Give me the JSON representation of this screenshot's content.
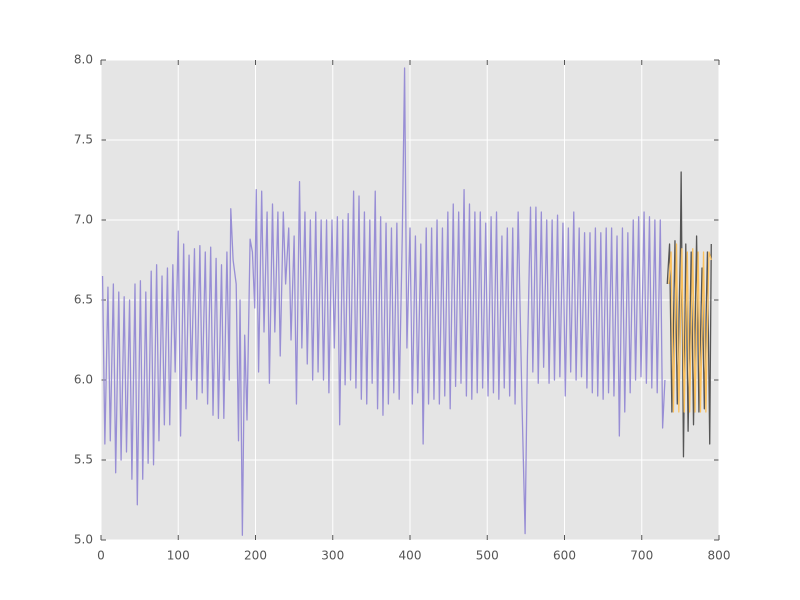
{
  "chart_data": {
    "type": "line",
    "grid": true,
    "background": "#e5e5e5",
    "xlim": [
      0,
      800
    ],
    "xticks": [
      0,
      100,
      200,
      300,
      400,
      500,
      600,
      700,
      800
    ],
    "ylim": [
      5,
      8
    ],
    "yticks": [
      {
        "value": 5,
        "label": "5.0"
      },
      {
        "value": 5.5,
        "label": "5.5"
      },
      {
        "value": 6,
        "label": "6.0"
      },
      {
        "value": 6.5,
        "label": "6.5"
      },
      {
        "value": 7,
        "label": "7.0"
      },
      {
        "value": 7.5,
        "label": "7.5"
      },
      {
        "value": 8,
        "label": "8.0"
      }
    ],
    "series": [
      {
        "color": "#988ed5",
        "x": [
          2,
          5,
          9,
          12,
          16,
          19,
          23,
          26,
          30,
          33,
          37,
          40,
          44,
          47,
          51,
          54,
          58,
          61,
          65,
          68,
          72,
          75,
          79,
          82,
          86,
          89,
          93,
          96,
          100,
          103,
          107,
          110,
          114,
          117,
          121,
          124,
          128,
          131,
          135,
          138,
          142,
          145,
          149,
          152,
          156,
          159,
          163,
          166,
          168,
          171,
          175,
          178,
          180,
          183,
          186,
          189,
          193,
          196,
          199,
          201,
          204,
          208,
          211,
          215,
          218,
          222,
          225,
          229,
          232,
          236,
          239,
          243,
          246,
          250,
          253,
          257,
          260,
          264,
          267,
          271,
          274,
          278,
          281,
          285,
          288,
          292,
          295,
          299,
          302,
          306,
          309,
          313,
          316,
          320,
          323,
          327,
          330,
          334,
          337,
          341,
          344,
          348,
          351,
          355,
          358,
          362,
          365,
          369,
          372,
          376,
          379,
          383,
          386,
          390,
          393,
          396,
          400,
          403,
          407,
          410,
          414,
          417,
          421,
          424,
          428,
          431,
          435,
          438,
          442,
          445,
          449,
          452,
          456,
          459,
          463,
          466,
          470,
          473,
          477,
          480,
          484,
          487,
          491,
          494,
          498,
          501,
          505,
          508,
          512,
          515,
          519,
          522,
          526,
          529,
          533,
          536,
          540,
          545,
          549,
          552,
          556,
          559,
          563,
          566,
          570,
          573,
          577,
          580,
          584,
          587,
          591,
          594,
          598,
          601,
          605,
          608,
          612,
          615,
          619,
          622,
          626,
          629,
          633,
          636,
          640,
          643,
          647,
          650,
          654,
          657,
          661,
          664,
          668,
          671,
          675,
          678,
          682,
          685,
          689,
          692,
          696,
          699,
          703,
          706,
          710,
          713,
          717,
          720,
          724,
          727,
          730
        ],
        "values": [
          6.65,
          5.6,
          6.58,
          5.62,
          6.6,
          5.42,
          6.55,
          5.5,
          6.52,
          5.55,
          6.5,
          5.38,
          6.6,
          5.22,
          6.62,
          5.38,
          6.55,
          5.48,
          6.68,
          5.47,
          6.72,
          5.62,
          6.65,
          5.72,
          6.7,
          5.72,
          6.72,
          6.05,
          6.93,
          5.65,
          6.85,
          5.82,
          6.78,
          6.0,
          6.82,
          5.88,
          6.84,
          5.92,
          6.8,
          5.85,
          6.83,
          5.78,
          6.76,
          5.76,
          6.72,
          5.76,
          6.8,
          6.0,
          7.07,
          6.75,
          6.6,
          5.62,
          6.5,
          5.03,
          6.28,
          5.75,
          6.88,
          6.8,
          6.45,
          7.19,
          6.05,
          7.18,
          6.3,
          7.05,
          5.98,
          7.1,
          6.3,
          7.05,
          6.15,
          7.05,
          6.6,
          6.95,
          6.25,
          6.9,
          5.85,
          7.24,
          6.2,
          7.05,
          6.1,
          7.0,
          6.0,
          7.05,
          6.05,
          7.0,
          6.0,
          7.0,
          5.92,
          7.0,
          6.2,
          7.02,
          5.72,
          7.0,
          5.97,
          7.04,
          6.0,
          7.18,
          5.95,
          7.15,
          5.88,
          7.05,
          5.85,
          7.0,
          5.98,
          7.18,
          5.82,
          7.02,
          5.78,
          6.98,
          5.85,
          6.95,
          5.92,
          6.98,
          5.88,
          6.9,
          7.95,
          6.2,
          6.95,
          5.85,
          6.9,
          5.92,
          6.85,
          5.6,
          6.95,
          5.85,
          6.95,
          5.88,
          7.0,
          5.85,
          6.95,
          5.9,
          7.05,
          5.82,
          7.1,
          5.96,
          7.05,
          5.98,
          7.19,
          5.9,
          7.1,
          5.88,
          7.05,
          5.92,
          7.05,
          5.95,
          6.98,
          5.9,
          7.02,
          5.92,
          7.05,
          5.88,
          6.9,
          5.95,
          6.95,
          5.9,
          6.95,
          5.85,
          7.05,
          5.85,
          5.04,
          6.15,
          7.08,
          6.05,
          7.08,
          5.98,
          7.05,
          6.08,
          7.0,
          5.98,
          7.0,
          6.0,
          7.03,
          6.02,
          6.98,
          5.9,
          6.95,
          6.05,
          7.05,
          6.0,
          6.95,
          6.02,
          6.92,
          5.95,
          6.92,
          5.92,
          6.95,
          5.9,
          6.92,
          5.88,
          6.95,
          5.92,
          6.95,
          5.9,
          6.9,
          5.65,
          6.95,
          5.8,
          6.92,
          5.92,
          7.0,
          6.0,
          7.02,
          6.02,
          7.05,
          5.98,
          7.02,
          5.95,
          7.0,
          5.92,
          7.0,
          5.7,
          6.0
        ]
      },
      {
        "color": "#555555",
        "x": [
          733,
          736,
          739,
          743,
          746,
          750,
          751,
          754,
          757,
          760,
          764,
          767,
          771,
          774,
          778,
          781,
          785,
          788,
          790
        ],
        "values": [
          6.6,
          6.85,
          5.8,
          6.87,
          5.85,
          6.82,
          7.3,
          5.52,
          6.85,
          5.68,
          6.8,
          5.72,
          6.9,
          5.8,
          6.7,
          5.82,
          6.8,
          5.6,
          6.85
        ]
      },
      {
        "color": "#fbc15e",
        "x": [
          735,
          738,
          741,
          745,
          748,
          752,
          755,
          759,
          762,
          766,
          769,
          773,
          776,
          780,
          783,
          787,
          790
        ],
        "values": [
          6.6,
          6.8,
          5.8,
          6.85,
          5.8,
          6.82,
          5.8,
          6.8,
          5.8,
          6.82,
          5.8,
          6.8,
          5.8,
          6.8,
          5.8,
          6.8,
          6.75
        ]
      }
    ]
  }
}
